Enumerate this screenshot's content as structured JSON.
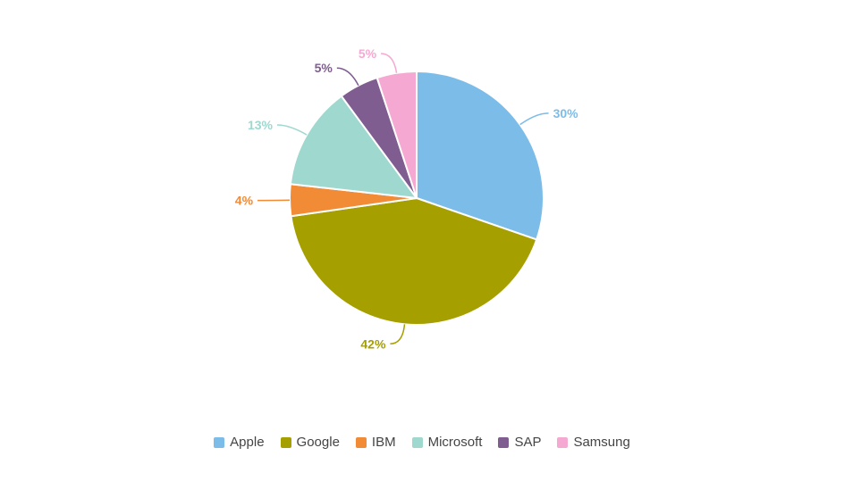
{
  "chart_data": {
    "type": "pie",
    "title": "",
    "categories": [
      "Apple",
      "Google",
      "IBM",
      "Microsoft",
      "SAP",
      "Samsung"
    ],
    "values": [
      30,
      42,
      4,
      13,
      5,
      5
    ],
    "data_labels": [
      "30%",
      "42%",
      "4%",
      "13%",
      "5%",
      "5%"
    ],
    "colors": [
      "#7cbce9",
      "#a69f00",
      "#f28b36",
      "#9ed8cf",
      "#7f5d91",
      "#f5a9d2"
    ],
    "start_angle_deg": 0,
    "legend_position": "bottom"
  }
}
